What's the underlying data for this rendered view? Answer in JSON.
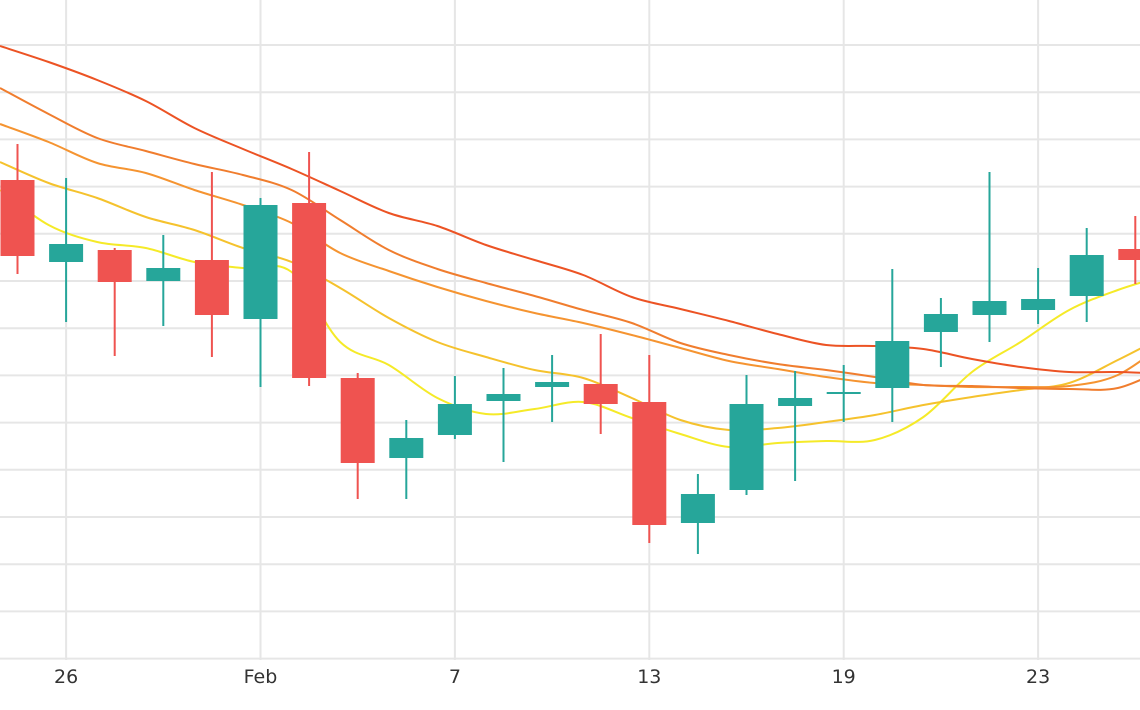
{
  "chart_data": {
    "type": "candlestick",
    "grid": true,
    "x_tick_labels": [
      "26",
      "Feb",
      "7",
      "13",
      "19",
      "23"
    ],
    "x_tick_indices": [
      1,
      5,
      9,
      13,
      17,
      21
    ],
    "y_range": [
      0,
      660
    ],
    "candles": [
      {
        "open": 480,
        "high": 516,
        "low": 386,
        "close": 404
      },
      {
        "open": 398,
        "high": 482,
        "low": 338,
        "close": 416
      },
      {
        "open": 410,
        "high": 412,
        "low": 304,
        "close": 378
      },
      {
        "open": 379,
        "high": 425,
        "low": 334,
        "close": 392
      },
      {
        "open": 400,
        "high": 488,
        "low": 303,
        "close": 345
      },
      {
        "open": 341,
        "high": 462,
        "low": 273,
        "close": 455
      },
      {
        "open": 457,
        "high": 508,
        "low": 274,
        "close": 282
      },
      {
        "open": 282,
        "high": 287,
        "low": 161,
        "close": 197
      },
      {
        "open": 202,
        "high": 240,
        "low": 161,
        "close": 222
      },
      {
        "open": 225,
        "high": 284,
        "low": 221,
        "close": 256
      },
      {
        "open": 259,
        "high": 292,
        "low": 198,
        "close": 266
      },
      {
        "open": 273,
        "high": 305,
        "low": 238,
        "close": 278
      },
      {
        "open": 276,
        "high": 326,
        "low": 226,
        "close": 256
      },
      {
        "open": 258,
        "high": 305,
        "low": 117,
        "close": 135
      },
      {
        "open": 137,
        "high": 186,
        "low": 106,
        "close": 166
      },
      {
        "open": 170,
        "high": 285,
        "low": 165,
        "close": 256
      },
      {
        "open": 254,
        "high": 289,
        "low": 179,
        "close": 262
      },
      {
        "open": 267,
        "high": 295,
        "low": 238,
        "close": 268
      },
      {
        "open": 272,
        "high": 391,
        "low": 238,
        "close": 319
      },
      {
        "open": 328,
        "high": 362,
        "low": 293,
        "close": 346
      },
      {
        "open": 345,
        "high": 488,
        "low": 318,
        "close": 359
      },
      {
        "open": 350,
        "high": 392,
        "low": 336,
        "close": 361
      },
      {
        "open": 364,
        "high": 432,
        "low": 338,
        "close": 405
      },
      {
        "open": 411,
        "high": 444,
        "low": 376,
        "close": 400
      }
    ],
    "moving_averages": [
      {
        "color": "#f5ea28",
        "values": [
          470,
          435,
          418,
          412,
          398,
          392,
          388,
          318,
          295,
          262,
          246,
          251,
          258,
          242,
          226,
          213,
          217,
          219,
          220,
          243,
          288,
          318,
          350,
          370,
          385
        ]
      },
      {
        "color": "#f5c22d",
        "values": [
          498,
          477,
          462,
          443,
          430,
          412,
          398,
          372,
          342,
          318,
          303,
          290,
          282,
          262,
          240,
          230,
          232,
          238,
          245,
          255,
          263,
          270,
          277,
          300,
          325
        ]
      },
      {
        "color": "#f59431",
        "values": [
          536,
          518,
          497,
          487,
          470,
          455,
          437,
          407,
          389,
          373,
          359,
          347,
          337,
          325,
          312,
          299,
          291,
          283,
          277,
          275,
          273,
          273,
          274,
          285,
          318
        ]
      },
      {
        "color": "#f07d2e",
        "values": [
          572,
          546,
          522,
          509,
          496,
          485,
          470,
          440,
          410,
          391,
          377,
          364,
          350,
          337,
          317,
          305,
          296,
          290,
          283,
          275,
          274,
          272,
          271,
          272,
          292
        ]
      },
      {
        "color": "#ec5324",
        "values": [
          614,
          598,
          580,
          559,
          532,
          511,
          491,
          469,
          447,
          434,
          415,
          400,
          385,
          363,
          351,
          339,
          326,
          315,
          314,
          311,
          301,
          293,
          288,
          288,
          286
        ]
      }
    ]
  }
}
